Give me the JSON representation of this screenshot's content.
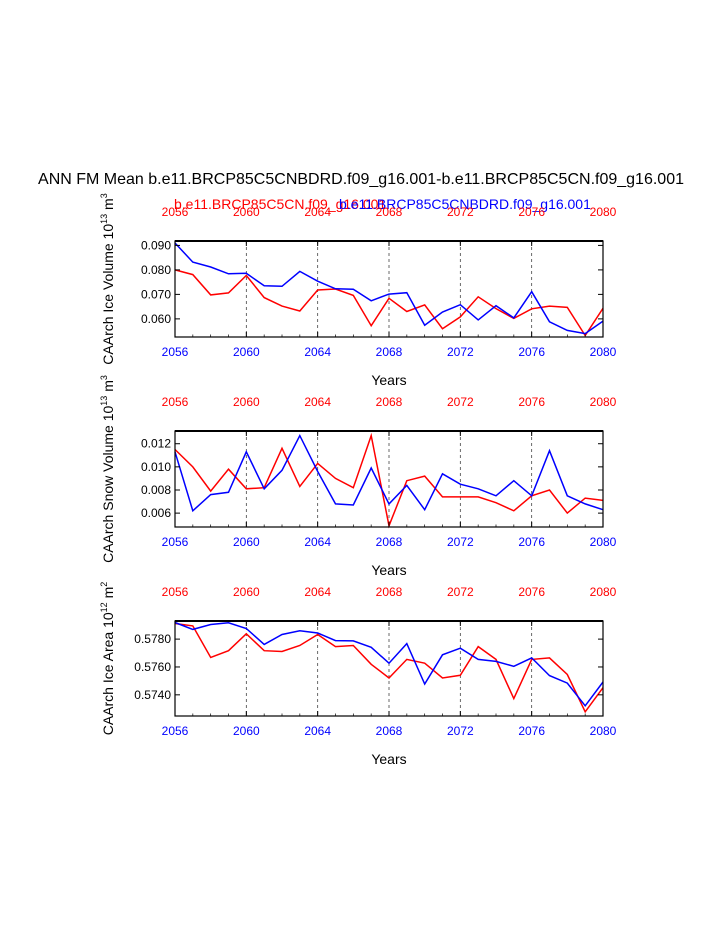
{
  "title": "ANN FM Mean b.e11.BRCP85C5CNBDRD.f09_g16.001-b.e11.BRCP85C5CN.f09_g16.001",
  "legend": {
    "red_label": "b.e11.BRCP85C5CN.f09_g16.001",
    "blue_label": "b.e11.BRCP85C5CNBDRD.f09_g16.001"
  },
  "colors": {
    "red": "#ff0000",
    "blue": "#0000ff"
  },
  "chart_data": [
    {
      "type": "line",
      "title": "",
      "xlabel": "Years",
      "ylabel": "CAArch Ice Volume 10^13 m^3",
      "ylabel_main": "CAArch Ice Volume 10",
      "ylabel_exp": "13",
      "ylabel_unit": " m",
      "ylabel_unit_exp": "3",
      "xlim": [
        2056,
        2080
      ],
      "ylim": [
        0.0526,
        0.0918
      ],
      "xticks": [
        2056,
        2060,
        2064,
        2068,
        2072,
        2076,
        2080
      ],
      "xtick_labels": [
        "2056",
        "2060",
        "2064",
        "2068",
        "2072",
        "2076",
        "2080"
      ],
      "yticks": [
        0.06,
        0.07,
        0.08,
        0.09
      ],
      "ytick_labels": [
        "0.060",
        "0.070",
        "0.080",
        "0.090"
      ],
      "x": [
        2056,
        2057,
        2058,
        2059,
        2060,
        2061,
        2062,
        2063,
        2064,
        2065,
        2066,
        2067,
        2068,
        2069,
        2070,
        2071,
        2072,
        2073,
        2074,
        2075,
        2076,
        2077,
        2078,
        2079,
        2080
      ],
      "series": [
        {
          "name": "b.e11.BRCP85C5CN.f09_g16.001",
          "color": "red",
          "values": [
            0.08,
            0.0781,
            0.0698,
            0.0706,
            0.0777,
            0.0687,
            0.0652,
            0.0632,
            0.0718,
            0.0722,
            0.0696,
            0.0572,
            0.0684,
            0.063,
            0.0657,
            0.056,
            0.0608,
            0.069,
            0.0642,
            0.0602,
            0.0641,
            0.0652,
            0.0647,
            0.0532,
            0.0643
          ]
        },
        {
          "name": "b.e11.BRCP85C5CNBDRD.f09_g16.001",
          "color": "blue",
          "values": [
            0.091,
            0.0832,
            0.0812,
            0.0784,
            0.0786,
            0.0735,
            0.0733,
            0.0794,
            0.0754,
            0.0723,
            0.0721,
            0.0674,
            0.0701,
            0.0707,
            0.0574,
            0.0628,
            0.0658,
            0.0596,
            0.0654,
            0.0604,
            0.0711,
            0.0588,
            0.0553,
            0.054,
            0.0591
          ]
        }
      ]
    },
    {
      "type": "line",
      "title": "",
      "xlabel": "Years",
      "ylabel": "CAArch Snow Volume 10^13 m^3",
      "ylabel_main": "CAArch Snow Volume 10",
      "ylabel_exp": "13",
      "ylabel_unit": " m",
      "ylabel_unit_exp": "3",
      "xlim": [
        2056,
        2080
      ],
      "ylim": [
        0.0048,
        0.0131
      ],
      "xticks": [
        2056,
        2060,
        2064,
        2068,
        2072,
        2076,
        2080
      ],
      "xtick_labels": [
        "2056",
        "2060",
        "2064",
        "2068",
        "2072",
        "2076",
        "2080"
      ],
      "yticks": [
        0.006,
        0.008,
        0.01,
        0.012
      ],
      "ytick_labels": [
        "0.006",
        "0.008",
        "0.010",
        "0.012"
      ],
      "x": [
        2056,
        2057,
        2058,
        2059,
        2060,
        2061,
        2062,
        2063,
        2064,
        2065,
        2066,
        2067,
        2068,
        2069,
        2070,
        2071,
        2072,
        2073,
        2074,
        2075,
        2076,
        2077,
        2078,
        2079,
        2080
      ],
      "series": [
        {
          "name": "b.e11.BRCP85C5CN.f09_g16.001",
          "color": "red",
          "values": [
            0.0115,
            0.01,
            0.0079,
            0.0098,
            0.0081,
            0.0082,
            0.0116,
            0.0083,
            0.0103,
            0.009,
            0.0082,
            0.0127,
            0.0049,
            0.0088,
            0.0092,
            0.0074,
            0.0074,
            0.0074,
            0.0069,
            0.0062,
            0.0075,
            0.008,
            0.006,
            0.0073,
            0.0071
          ]
        },
        {
          "name": "b.e11.BRCP85C5CNBDRD.f09_g16.001",
          "color": "blue",
          "values": [
            0.0113,
            0.0062,
            0.0076,
            0.0078,
            0.0113,
            0.0081,
            0.0097,
            0.0127,
            0.0096,
            0.0068,
            0.0067,
            0.0099,
            0.0068,
            0.0084,
            0.0063,
            0.0094,
            0.0085,
            0.0081,
            0.0075,
            0.0088,
            0.0075,
            0.0114,
            0.0075,
            0.0068,
            0.0063
          ]
        }
      ]
    },
    {
      "type": "line",
      "title": "",
      "xlabel": "Years",
      "ylabel": "CAArch Ice Area 10^12 m^2",
      "ylabel_main": "CAArch Ice Area 10",
      "ylabel_exp": "12",
      "ylabel_unit": " m",
      "ylabel_unit_exp": "2",
      "xlim": [
        2056,
        2080
      ],
      "ylim": [
        0.57248,
        0.5793
      ],
      "xticks": [
        2056,
        2060,
        2064,
        2068,
        2072,
        2076,
        2080
      ],
      "xtick_labels": [
        "2056",
        "2060",
        "2064",
        "2068",
        "2072",
        "2076",
        "2080"
      ],
      "yticks": [
        0.574,
        0.576,
        0.578
      ],
      "ytick_labels": [
        "0.5740",
        "0.5760",
        "0.5780"
      ],
      "x": [
        2056,
        2057,
        2058,
        2059,
        2060,
        2061,
        2062,
        2063,
        2064,
        2065,
        2066,
        2067,
        2068,
        2069,
        2070,
        2071,
        2072,
        2073,
        2074,
        2075,
        2076,
        2077,
        2078,
        2079,
        2080
      ],
      "series": [
        {
          "name": "b.e11.BRCP85C5CN.f09_g16.001",
          "color": "red",
          "values": [
            0.57912,
            0.57895,
            0.57668,
            0.57717,
            0.57838,
            0.57717,
            0.57711,
            0.57754,
            0.57833,
            0.57746,
            0.57754,
            0.57619,
            0.57521,
            0.57654,
            0.57627,
            0.57521,
            0.5754,
            0.57746,
            0.57654,
            0.57373,
            0.57654,
            0.57665,
            0.57546,
            0.57278,
            0.57451
          ]
        },
        {
          "name": "b.e11.BRCP85C5CNBDRD.f09_g16.001",
          "color": "blue",
          "values": [
            0.57919,
            0.5787,
            0.57905,
            0.57917,
            0.57876,
            0.57762,
            0.57833,
            0.5786,
            0.57844,
            0.57789,
            0.57787,
            0.57741,
            0.57627,
            0.57768,
            0.57478,
            0.57687,
            0.57735,
            0.57654,
            0.5764,
            0.57605,
            0.57665,
            0.57538,
            0.57484,
            0.57321,
            0.57492
          ]
        }
      ]
    }
  ]
}
